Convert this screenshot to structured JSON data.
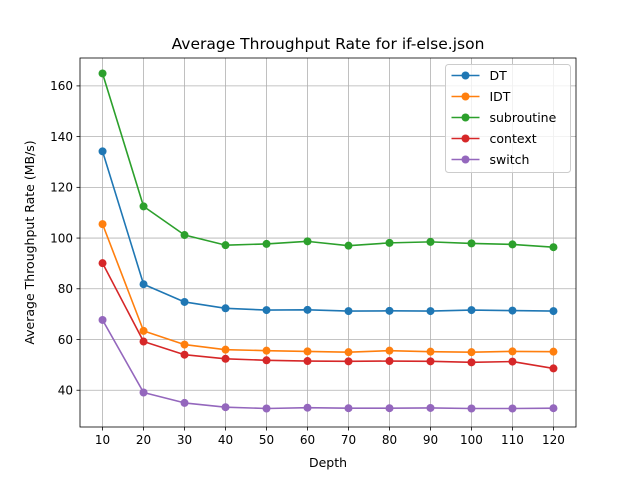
{
  "chart_data": {
    "type": "line",
    "title": "Average Throughput Rate for if-else.json",
    "xlabel": "Depth",
    "ylabel": "Average Throughput Rate (MB/s)",
    "x": [
      10,
      20,
      30,
      40,
      50,
      60,
      70,
      80,
      90,
      100,
      110,
      120
    ],
    "xticks": [
      "10",
      "20",
      "30",
      "40",
      "50",
      "60",
      "70",
      "80",
      "90",
      "100",
      "110",
      "120"
    ],
    "yticks": [
      "40",
      "60",
      "80",
      "100",
      "120",
      "140",
      "160"
    ],
    "xlim": [
      4.5,
      125.5
    ],
    "ylim": [
      25.5,
      171
    ],
    "grid": true,
    "legend_position": "top-right",
    "series": [
      {
        "name": "DT",
        "color": "#1f77b4",
        "values": [
          134.2,
          81.8,
          74.8,
          72.3,
          71.6,
          71.7,
          71.2,
          71.3,
          71.2,
          71.6,
          71.4,
          71.2
        ]
      },
      {
        "name": "IDT",
        "color": "#ff7f0e",
        "values": [
          105.5,
          63.4,
          58.0,
          56.0,
          55.6,
          55.3,
          55.0,
          55.6,
          55.2,
          55.0,
          55.3,
          55.2
        ]
      },
      {
        "name": "subroutine",
        "color": "#2ca02c",
        "values": [
          164.9,
          112.5,
          101.2,
          97.2,
          97.7,
          98.7,
          97.0,
          98.1,
          98.5,
          97.9,
          97.5,
          96.4
        ]
      },
      {
        "name": "context",
        "color": "#d62728",
        "values": [
          90.1,
          59.2,
          54.0,
          52.4,
          51.8,
          51.5,
          51.4,
          51.5,
          51.4,
          51.0,
          51.3,
          48.6
        ]
      },
      {
        "name": "switch",
        "color": "#9467bd",
        "values": [
          67.7,
          39.1,
          35.0,
          33.3,
          32.8,
          33.1,
          32.9,
          32.9,
          33.0,
          32.8,
          32.8,
          32.9
        ]
      }
    ]
  }
}
